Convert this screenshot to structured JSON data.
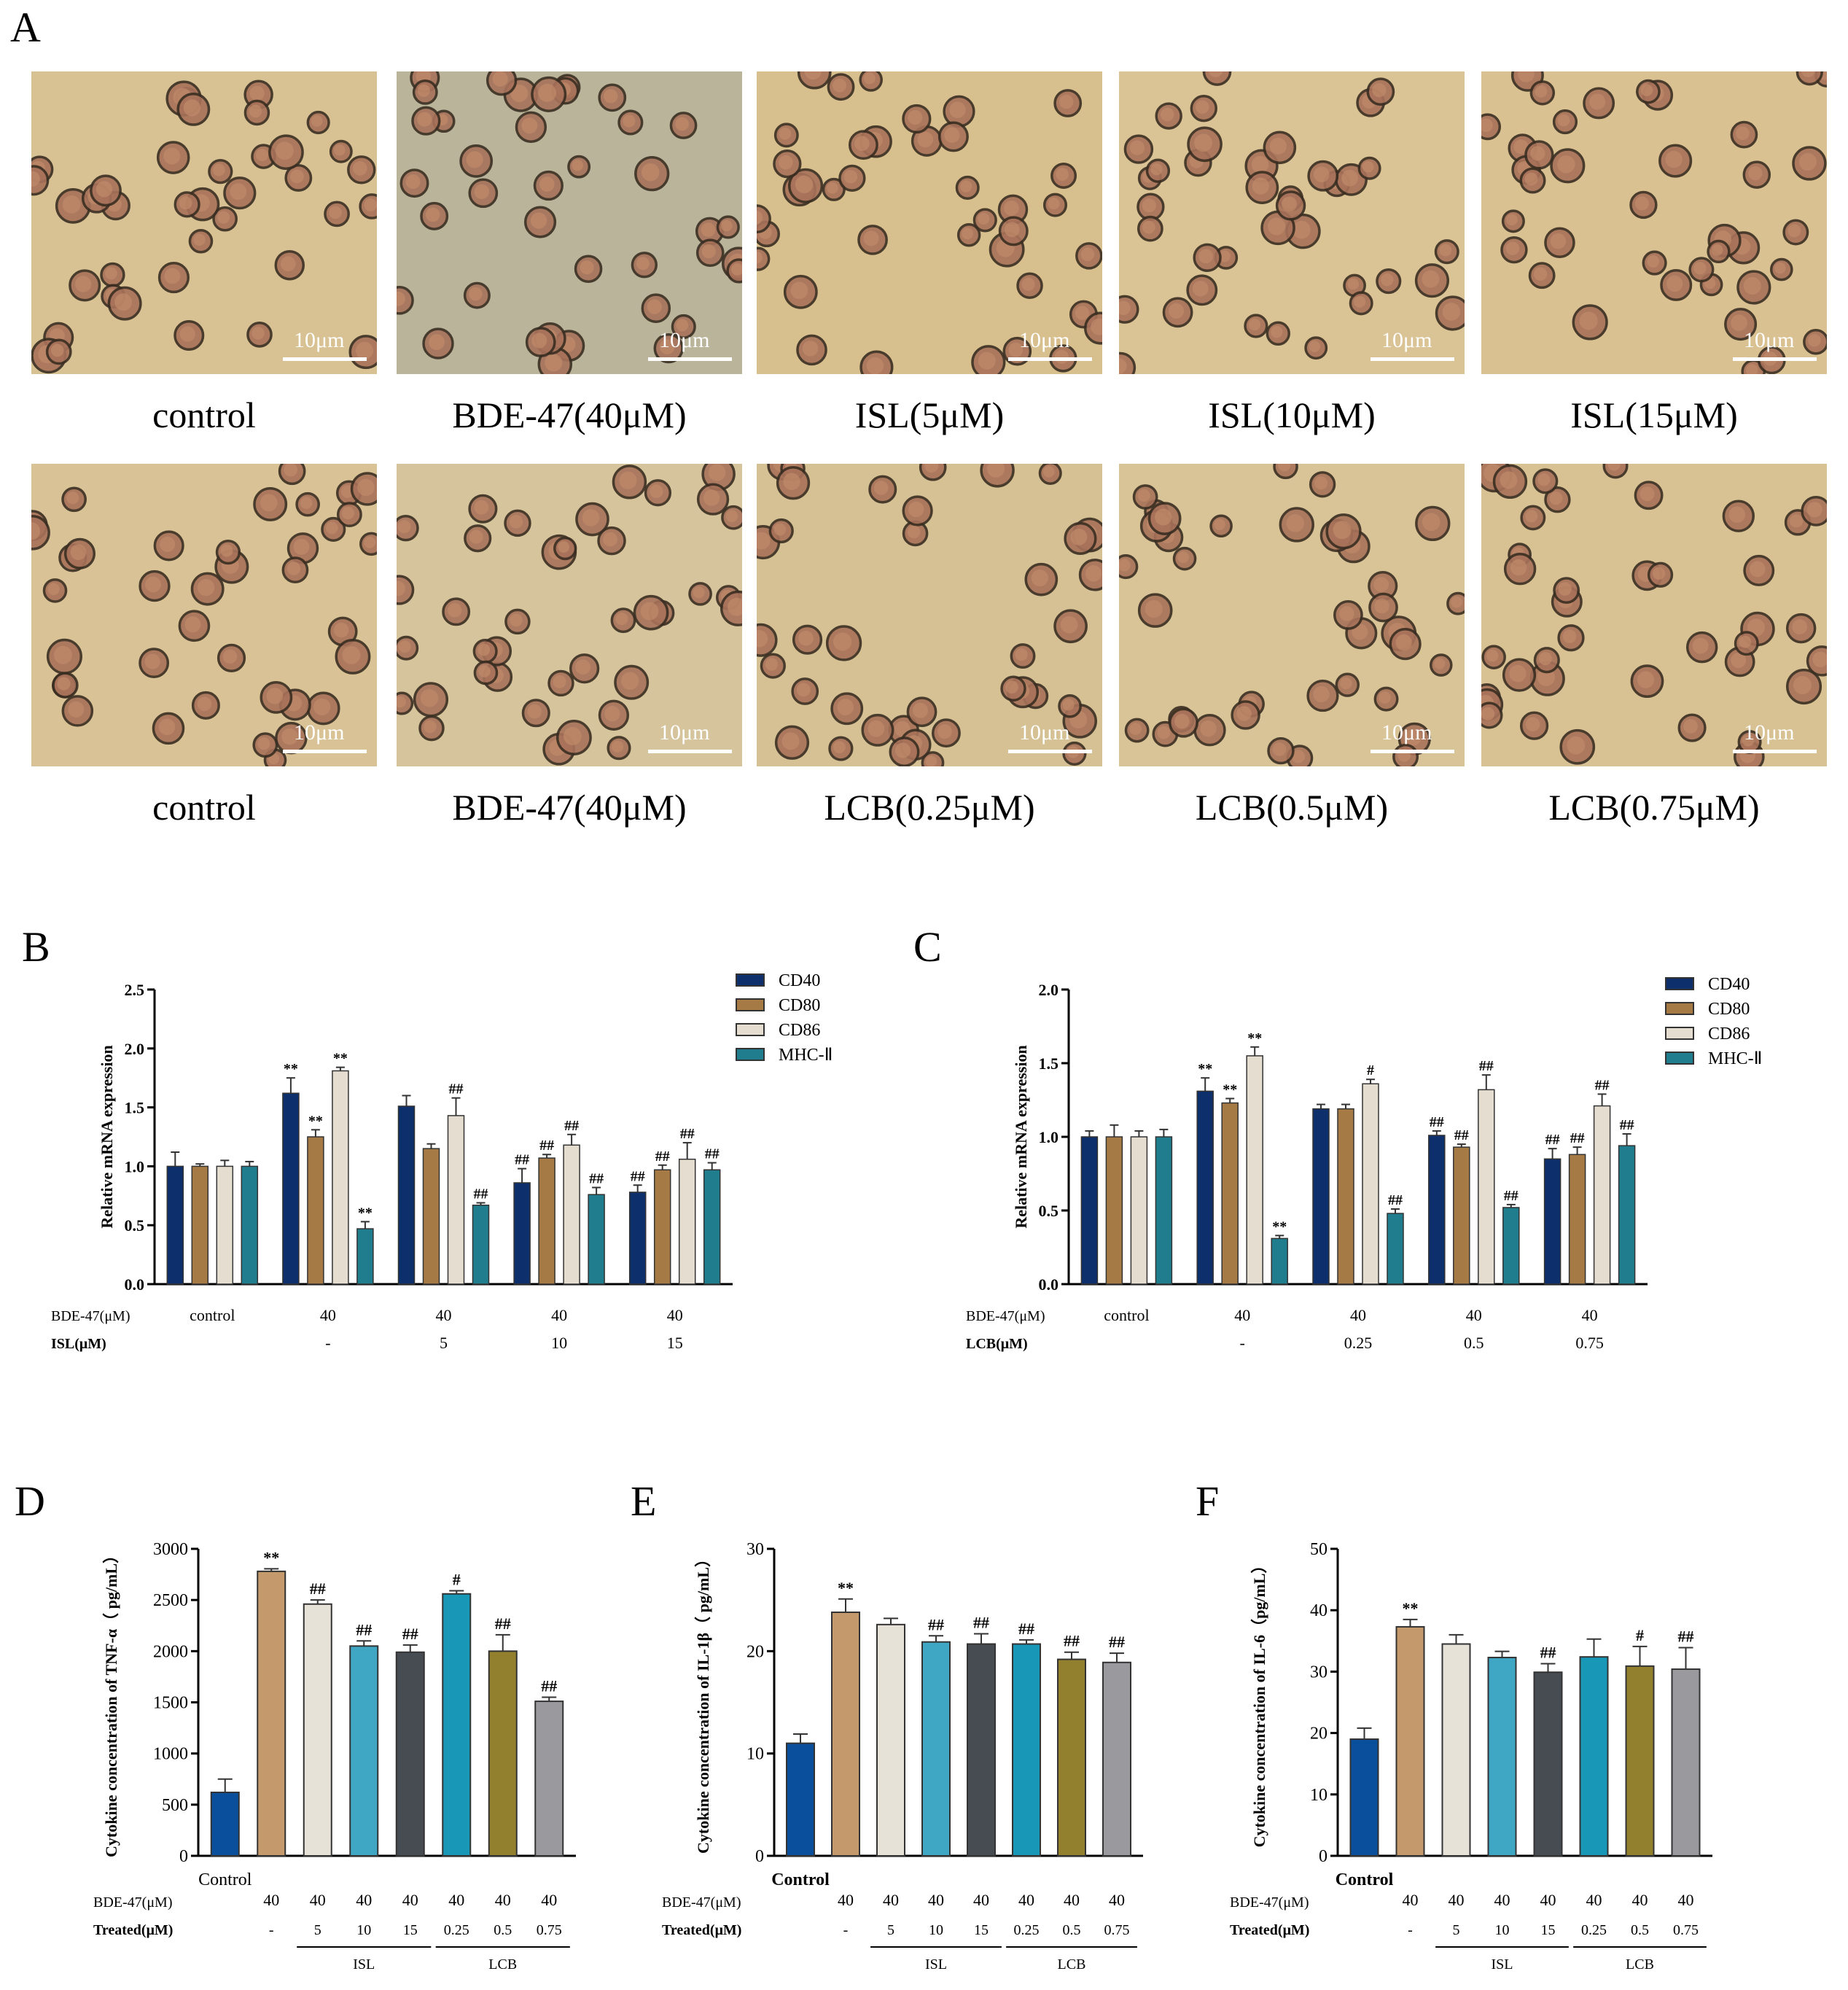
{
  "panel_A": {
    "letter": "A",
    "scale_label": "10μm",
    "rows": [
      {
        "images": [
          {
            "label": "control",
            "bg": "#d8c294"
          },
          {
            "label": "BDE-47(40μM)",
            "bg": "#b9b49a"
          },
          {
            "label": "ISL(5μM)",
            "bg": "#d8c08e"
          },
          {
            "label": "ISL(10μM)",
            "bg": "#dac394"
          },
          {
            "label": "ISL(15μM)",
            "bg": "#dac192"
          }
        ]
      },
      {
        "images": [
          {
            "label": "control",
            "bg": "#d9c396"
          },
          {
            "label": "BDE-47(40μM)",
            "bg": "#d6c49c"
          },
          {
            "label": "LCB(0.25μM)",
            "bg": "#d5c194"
          },
          {
            "label": "LCB(0.5μM)",
            "bg": "#d9c497"
          },
          {
            "label": "LCB(0.75μM)",
            "bg": "#d8c294"
          }
        ]
      }
    ]
  },
  "chart_data": [
    {
      "id": "B",
      "letter": "B",
      "type": "bar",
      "ylabel": "Relative mRNA expression",
      "ylim": [
        0,
        2.5
      ],
      "yticks": [
        "0.0",
        "0.5",
        "1.0",
        "1.5",
        "2.0",
        "2.5"
      ],
      "legend_position": "top-right",
      "row1_label": "BDE-47(μM)",
      "row2_label": "ISL(μM)",
      "groups": [
        {
          "row1": "control",
          "row2": ""
        },
        {
          "row1": "40",
          "row2": "-"
        },
        {
          "row1": "40",
          "row2": "5"
        },
        {
          "row1": "40",
          "row2": "10"
        },
        {
          "row1": "40",
          "row2": "15"
        }
      ],
      "series": [
        {
          "name": "CD40",
          "color": "#0d2f6b",
          "values": [
            1.0,
            1.62,
            1.51,
            0.86,
            0.78
          ],
          "errors": [
            0.12,
            0.13,
            0.09,
            0.12,
            0.06
          ],
          "marks": [
            "",
            "**",
            "",
            "##",
            "##"
          ]
        },
        {
          "name": "CD80",
          "color": "#a57a45",
          "values": [
            1.0,
            1.25,
            1.15,
            1.07,
            0.97
          ],
          "errors": [
            0.02,
            0.06,
            0.04,
            0.03,
            0.04
          ],
          "marks": [
            "",
            "**",
            "",
            "##",
            "##"
          ]
        },
        {
          "name": "CD86",
          "color": "#e4ddd0",
          "values": [
            1.0,
            1.81,
            1.43,
            1.18,
            1.06
          ],
          "errors": [
            0.05,
            0.03,
            0.15,
            0.09,
            0.14
          ],
          "marks": [
            "",
            "**",
            "##",
            "##",
            "##"
          ]
        },
        {
          "name": "MHC-Ⅱ",
          "color": "#1f7d8e",
          "values": [
            1.0,
            0.47,
            0.67,
            0.76,
            0.97
          ],
          "errors": [
            0.04,
            0.06,
            0.02,
            0.06,
            0.06
          ],
          "marks": [
            "",
            "**",
            "##",
            "##",
            "##"
          ]
        }
      ]
    },
    {
      "id": "C",
      "letter": "C",
      "type": "bar",
      "ylabel": "Relative mRNA expression",
      "ylim": [
        0,
        2.0
      ],
      "yticks": [
        "0.0",
        "0.5",
        "1.0",
        "1.5",
        "2.0"
      ],
      "legend_position": "top-right",
      "row1_label": "BDE-47(μM)",
      "row2_label": "LCB(μM)",
      "groups": [
        {
          "row1": "control",
          "row2": ""
        },
        {
          "row1": "40",
          "row2": "-"
        },
        {
          "row1": "40",
          "row2": "0.25"
        },
        {
          "row1": "40",
          "row2": "0.5"
        },
        {
          "row1": "40",
          "row2": "0.75"
        }
      ],
      "series": [
        {
          "name": "CD40",
          "color": "#0d2f6b",
          "values": [
            1.0,
            1.31,
            1.19,
            1.01,
            0.85
          ],
          "errors": [
            0.04,
            0.09,
            0.03,
            0.03,
            0.07
          ],
          "marks": [
            "",
            "**",
            "",
            "##",
            "##"
          ]
        },
        {
          "name": "CD80",
          "color": "#a57a45",
          "values": [
            1.0,
            1.23,
            1.19,
            0.93,
            0.88
          ],
          "errors": [
            0.08,
            0.03,
            0.03,
            0.02,
            0.05
          ],
          "marks": [
            "",
            "**",
            "",
            "##",
            "##"
          ]
        },
        {
          "name": "CD86",
          "color": "#e4ddd0",
          "values": [
            1.0,
            1.55,
            1.36,
            1.32,
            1.21
          ],
          "errors": [
            0.04,
            0.06,
            0.03,
            0.1,
            0.08
          ],
          "marks": [
            "",
            "**",
            "#",
            "##",
            "##"
          ]
        },
        {
          "name": "MHC-Ⅱ",
          "color": "#1f7d8e",
          "values": [
            1.0,
            0.31,
            0.48,
            0.52,
            0.94
          ],
          "errors": [
            0.05,
            0.02,
            0.03,
            0.02,
            0.08
          ],
          "marks": [
            "",
            "**",
            "##",
            "##",
            "##"
          ]
        }
      ]
    },
    {
      "id": "D",
      "letter": "D",
      "type": "bar",
      "ylabel": "Cytokine concentration of TNF-α（ pg/mL）",
      "ylim": [
        0,
        3000
      ],
      "yticks": [
        "0",
        "500",
        "1000",
        "1500",
        "2000",
        "2500",
        "3000"
      ],
      "control_label": "Control",
      "control_bold": false,
      "row1_label": "BDE-47(μM)",
      "row2_label": "Treated(μM)",
      "row1": [
        "",
        "40",
        "40",
        "40",
        "40",
        "40",
        "40",
        "40"
      ],
      "row2": [
        "",
        "-",
        "5",
        "10",
        "15",
        "0.25",
        "0.5",
        "0.75"
      ],
      "bracket_labels": [
        "ISL",
        "LCB"
      ],
      "colors": [
        "#0a4f9c",
        "#c49a6c",
        "#e6e2d8",
        "#3fa6c4",
        "#474b52",
        "#1898b6",
        "#93802f",
        "#9a9a9e"
      ],
      "values": [
        620,
        2780,
        2460,
        2050,
        1990,
        2560,
        2000,
        1510
      ],
      "errors": [
        130,
        25,
        40,
        50,
        70,
        30,
        160,
        40
      ],
      "marks": [
        "",
        "**",
        "##",
        "##",
        "##",
        "#",
        "##",
        "##"
      ]
    },
    {
      "id": "E",
      "letter": "E",
      "type": "bar",
      "ylabel": "Cytokine concentration of IL-1β（ pg/mL）",
      "ylim": [
        0,
        30
      ],
      "yticks": [
        "0",
        "10",
        "20",
        "30"
      ],
      "control_label": "Control",
      "control_bold": true,
      "row1_label": "BDE-47(μM)",
      "row2_label": "Treated(μM)",
      "row1": [
        "",
        "40",
        "40",
        "40",
        "40",
        "40",
        "40",
        "40"
      ],
      "row2": [
        "",
        "-",
        "5",
        "10",
        "15",
        "0.25",
        "0.5",
        "0.75"
      ],
      "bracket_labels": [
        "ISL",
        "LCB"
      ],
      "colors": [
        "#0a4f9c",
        "#c49a6c",
        "#e6e2d8",
        "#3fa6c4",
        "#474b52",
        "#1898b6",
        "#93802f",
        "#9a9a9e"
      ],
      "values": [
        11.0,
        23.8,
        22.6,
        20.9,
        20.7,
        20.7,
        19.2,
        18.9
      ],
      "errors": [
        0.9,
        1.3,
        0.6,
        0.6,
        1.0,
        0.4,
        0.7,
        0.9
      ],
      "marks": [
        "",
        "**",
        "",
        "##",
        "##",
        "##",
        "##",
        "##"
      ]
    },
    {
      "id": "F",
      "letter": "F",
      "type": "bar",
      "ylabel": "Cytokine concentration of IL-6（pg/mL）",
      "ylim": [
        0,
        50
      ],
      "yticks": [
        "0",
        "10",
        "20",
        "30",
        "40",
        "50"
      ],
      "control_label": "Control",
      "control_bold": true,
      "row1_label": "BDE-47(μM)",
      "row2_label": "Treated(μM)",
      "row1": [
        "",
        "40",
        "40",
        "40",
        "40",
        "40",
        "40",
        "40"
      ],
      "row2": [
        "",
        "-",
        "5",
        "10",
        "15",
        "0.25",
        "0.5",
        "0.75"
      ],
      "bracket_labels": [
        "ISL",
        "LCB"
      ],
      "colors": [
        "#0a4f9c",
        "#c49a6c",
        "#e6e2d8",
        "#3fa6c4",
        "#474b52",
        "#1898b6",
        "#93802f",
        "#9a9a9e"
      ],
      "values": [
        19.0,
        37.3,
        34.5,
        32.3,
        29.9,
        32.4,
        30.9,
        30.4
      ],
      "errors": [
        1.8,
        1.2,
        1.5,
        1.0,
        1.4,
        2.9,
        3.2,
        3.5
      ],
      "marks": [
        "",
        "**",
        "",
        "",
        "##",
        "",
        "#",
        "##"
      ]
    }
  ]
}
